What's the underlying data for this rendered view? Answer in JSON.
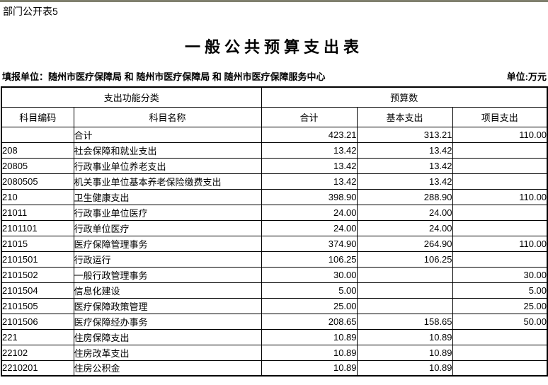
{
  "page": {
    "sheet_label": "部门公开表5",
    "title": "一般公共预算支出表",
    "reporting_unit": "填报单位：随州市医疗保障局 和 随州市医疗保障局 和 随州市医疗保障服务中心",
    "unit_label": "单位:万元",
    "topbar_color": "#7f7f6e"
  },
  "table": {
    "header": {
      "function_group": "支出功能分类",
      "budget_group": "预算数",
      "columns": [
        "科目编码",
        "科目名称",
        "合计",
        "基本支出",
        "项目支出"
      ]
    },
    "rows": [
      {
        "code": "",
        "name": "合计",
        "indent": 0,
        "total": "423.21",
        "basic": "313.21",
        "project": "110.00"
      },
      {
        "code": "208",
        "name": "社会保障和就业支出",
        "indent": 0,
        "total": "13.42",
        "basic": "13.42",
        "project": ""
      },
      {
        "code": "20805",
        "name": "行政事业单位养老支出",
        "indent": 1,
        "total": "13.42",
        "basic": "13.42",
        "project": ""
      },
      {
        "code": "2080505",
        "name": "机关事业单位基本养老保险缴费支出",
        "indent": 2,
        "total": "13.42",
        "basic": "13.42",
        "project": ""
      },
      {
        "code": "210",
        "name": "卫生健康支出",
        "indent": 0,
        "total": "398.90",
        "basic": "288.90",
        "project": "110.00"
      },
      {
        "code": "21011",
        "name": "行政事业单位医疗",
        "indent": 1,
        "total": "24.00",
        "basic": "24.00",
        "project": ""
      },
      {
        "code": "2101101",
        "name": "行政单位医疗",
        "indent": 2,
        "total": "24.00",
        "basic": "24.00",
        "project": ""
      },
      {
        "code": "21015",
        "name": "医疗保障管理事务",
        "indent": 1,
        "total": "374.90",
        "basic": "264.90",
        "project": "110.00"
      },
      {
        "code": "2101501",
        "name": "行政运行",
        "indent": 2,
        "total": "106.25",
        "basic": "106.25",
        "project": ""
      },
      {
        "code": "2101502",
        "name": "一般行政管理事务",
        "indent": 2,
        "total": "30.00",
        "basic": "",
        "project": "30.00"
      },
      {
        "code": "2101504",
        "name": "信息化建设",
        "indent": 2,
        "total": "5.00",
        "basic": "",
        "project": "5.00"
      },
      {
        "code": "2101505",
        "name": "医疗保障政策管理",
        "indent": 2,
        "total": "25.00",
        "basic": "",
        "project": "25.00"
      },
      {
        "code": "2101506",
        "name": "医疗保障经办事务",
        "indent": 2,
        "total": "208.65",
        "basic": "158.65",
        "project": "50.00"
      },
      {
        "code": "221",
        "name": "住房保障支出",
        "indent": 0,
        "total": "10.89",
        "basic": "10.89",
        "project": ""
      },
      {
        "code": "22102",
        "name": "住房改革支出",
        "indent": 1,
        "total": "10.89",
        "basic": "10.89",
        "project": ""
      },
      {
        "code": "2210201",
        "name": "住房公积金",
        "indent": 2,
        "total": "10.89",
        "basic": "10.89",
        "project": ""
      }
    ]
  }
}
